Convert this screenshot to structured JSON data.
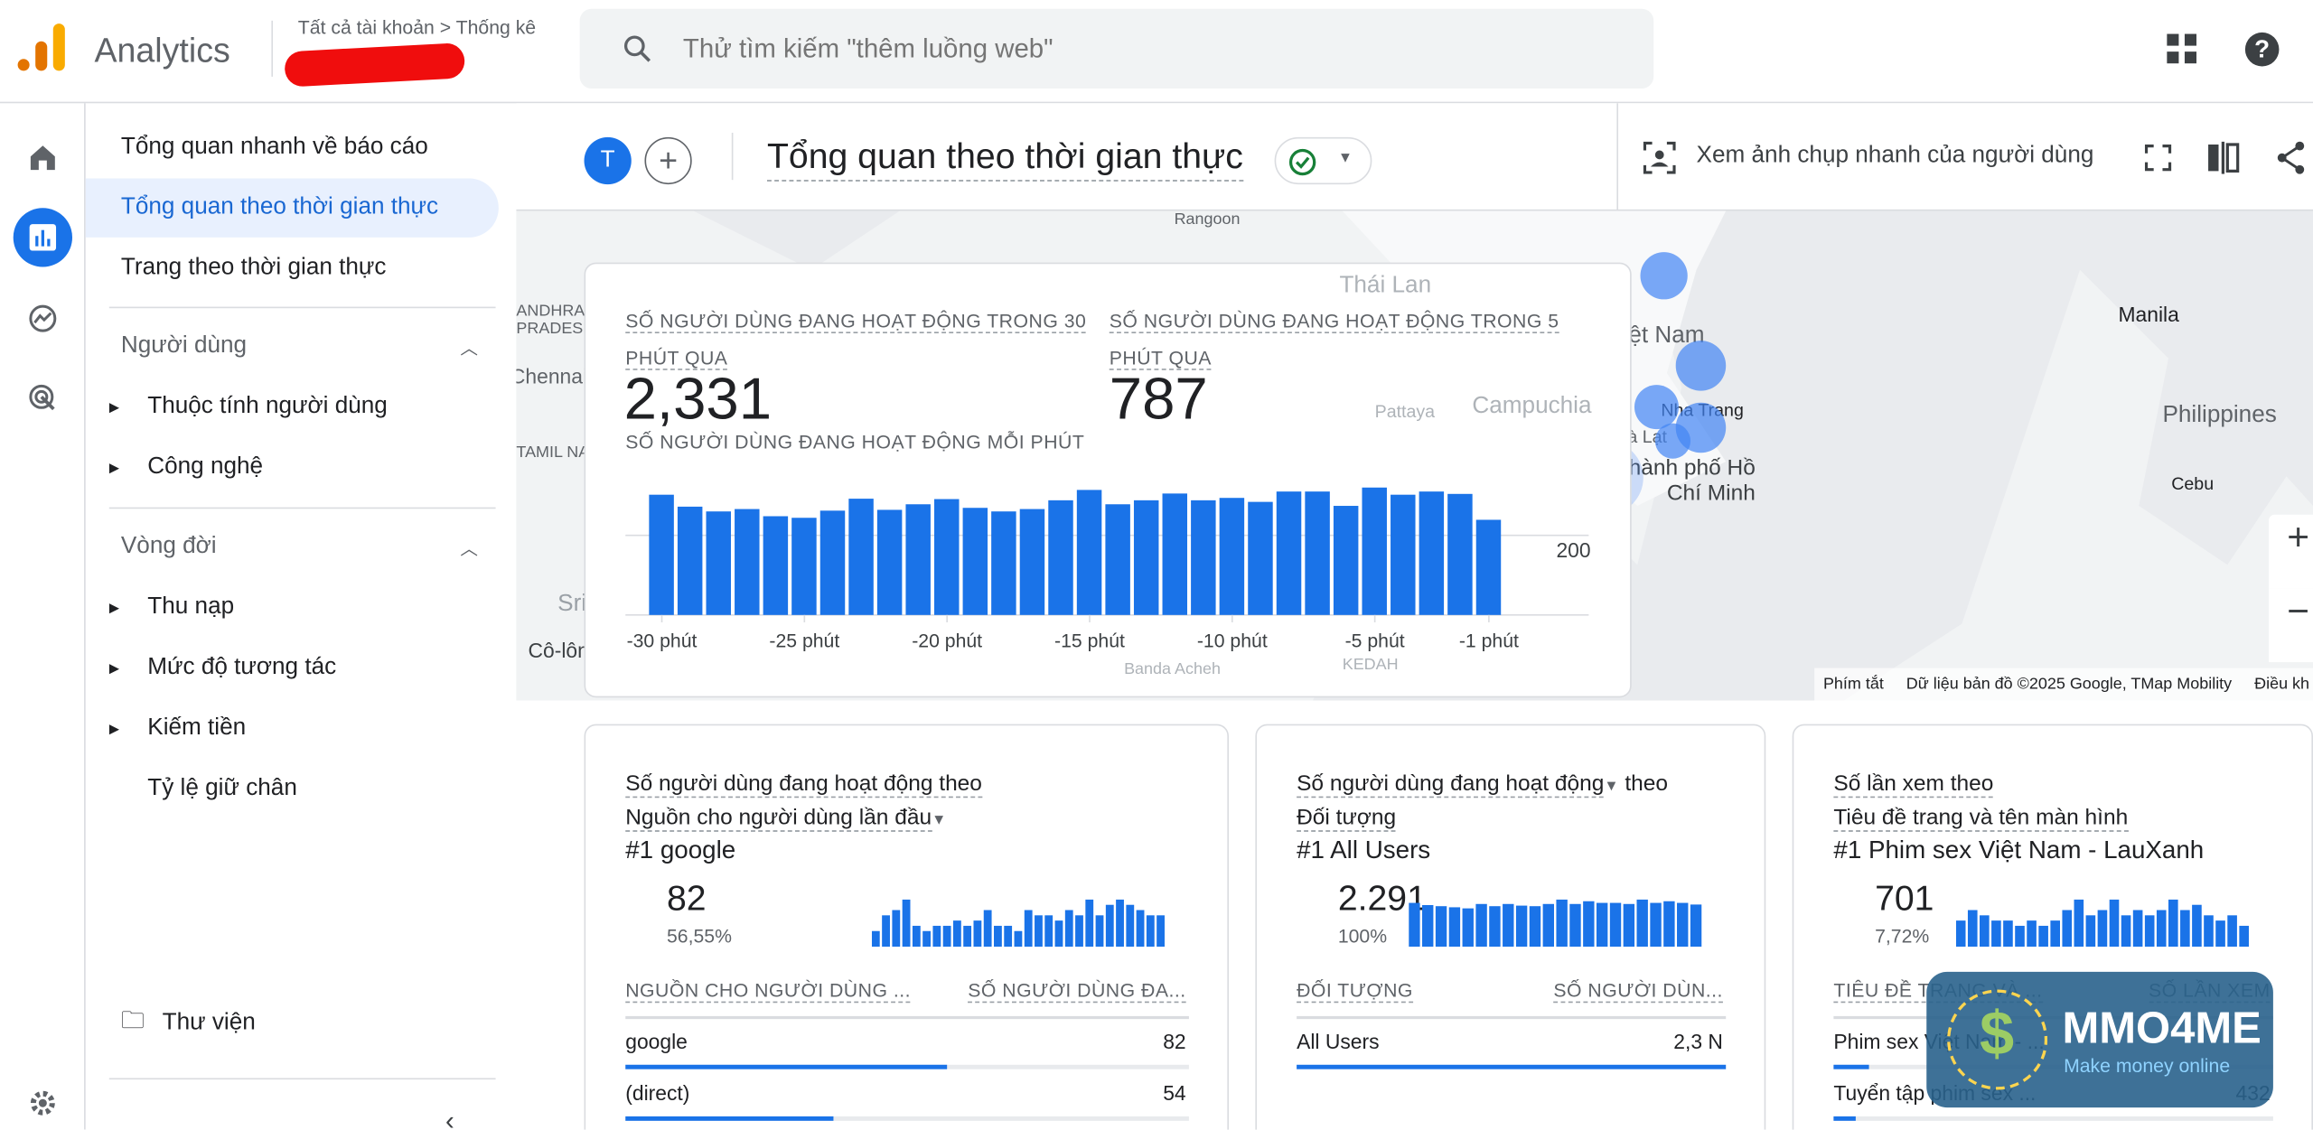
{
  "app": {
    "title": "Analytics",
    "breadcrumb": "Tất cả tài khoản > Thống kê"
  },
  "search": {
    "placeholder": "Thử tìm kiếm \"thêm luồng web\""
  },
  "icons": {
    "apps": "apps-grid-icon",
    "help": "help-icon",
    "home": "home-icon",
    "reports": "bar-chart-icon",
    "explore": "explore-icon",
    "advertising": "advertising-icon",
    "settings": "gear-icon"
  },
  "colors": {
    "accent": "#1a73e8",
    "active_bg": "#e8f0fe",
    "active_text": "#1967d2"
  },
  "sidebar": {
    "items": [
      {
        "label": "Tổng quan nhanh về báo cáo"
      },
      {
        "label": "Tổng quan theo thời gian thực",
        "active": true
      },
      {
        "label": "Trang theo thời gian thực"
      }
    ],
    "groups": [
      {
        "label": "Người dùng",
        "children": [
          "Thuộc tính người dùng",
          "Công nghệ"
        ]
      },
      {
        "label": "Vòng đời",
        "children": [
          "Thu nạp",
          "Mức độ tương tác",
          "Kiếm tiền",
          "Tỷ lệ giữ chân"
        ]
      }
    ],
    "library": "Thư viện"
  },
  "header": {
    "avatar": "T",
    "title": "Tổng quan theo thời gian thực",
    "snapshot": "Xem ảnh chụp nhanh của người dùng"
  },
  "map": {
    "labels": [
      "Thái Lan",
      "Việt Nam",
      "Campuchia",
      "Nha Trang",
      "Tp. Đà Lạt",
      "Thành phố Hồ Chí Minh",
      "Manila",
      "Philippines",
      "Cebu",
      "Pattaya",
      "Chennai",
      "Cô-lôm-bô",
      "Sri Lanka",
      "Banda Acheh",
      "KEDAH",
      "Rangoon",
      "ANDHRA PRADESH",
      "TAMIL NADU"
    ],
    "attribution": [
      "Phím tắt",
      "Dữ liệu bản đồ ©2025 Google, TMap Mobility",
      "Điều kh"
    ]
  },
  "realtime": {
    "kpi30_label": "SỐ NGƯỜI DÙNG ĐANG HOẠT ĐỘNG TRONG 30 PHÚT QUA",
    "kpi30_value": "2,331",
    "kpi5_label": "SỐ NGƯỜI DÙNG ĐANG HOẠT ĐỘNG TRONG 5 PHÚT QUA",
    "kpi5_value": "787",
    "chart_label": "SỐ NGƯỜI DÙNG ĐANG HOẠT ĐỘNG MỖI PHÚT"
  },
  "chart_data": {
    "type": "bar",
    "xticks": [
      "-30 phút",
      "-25 phút",
      "-20 phút",
      "-15 phút",
      "-10 phút",
      "-5 phút",
      "-1 phút"
    ],
    "yticks": [
      200
    ],
    "ylim": [
      0,
      400
    ],
    "values": [
      302,
      272,
      260,
      266,
      248,
      244,
      262,
      292,
      264,
      278,
      291,
      269,
      260,
      266,
      288,
      314,
      278,
      288,
      305,
      288,
      294,
      284,
      310,
      310,
      274,
      320,
      302,
      310,
      304,
      239
    ]
  },
  "cards": [
    {
      "title1": "Số người dùng đang hoạt động theo",
      "title2": "Nguồn cho người dùng lần đầu",
      "top": "#1  google",
      "value": "82",
      "pct": "56,55%",
      "col1": "NGUỒN CHO NGƯỜI DÙNG ...",
      "col2": "SỐ NGƯỜI DÙNG ĐA...",
      "rows": [
        {
          "name": "google",
          "value": "82",
          "share": 0.57
        },
        {
          "name": "(direct)",
          "value": "54",
          "share": 0.37
        }
      ],
      "spark": [
        3,
        6,
        7,
        9,
        4,
        3,
        4,
        4,
        5,
        4,
        5,
        7,
        4,
        4,
        3,
        7,
        6,
        6,
        5,
        7,
        6,
        9,
        6,
        8,
        9,
        8,
        7,
        6,
        6
      ]
    },
    {
      "title1": "Số người dùng đang hoạt động",
      "title2": "Đối tượng",
      "top": "#1  All Users",
      "value": "2.291",
      "pct": "100%",
      "col1": "ĐỐI TƯỢNG",
      "col2": "SỐ NGƯỜI DÙN...",
      "rows": [
        {
          "name": "All Users",
          "value": "2,3 N",
          "share": 1.0
        }
      ],
      "spark": [
        8,
        7.6,
        7.4,
        7.2,
        7,
        7.8,
        7.4,
        7.8,
        7.5,
        7.4,
        7.8,
        8.6,
        7.8,
        8.3,
        8,
        8,
        7.8,
        8.6,
        8,
        8.3,
        8,
        7.7
      ]
    },
    {
      "title1": "Số lần xem theo",
      "title2": "Tiêu đề trang và tên màn hình",
      "top": "#1  Phim sex Việt Nam - LauXanh",
      "value": "701",
      "pct": "7,72%",
      "col1": "TIÊU ĐỀ TRANG VÀ ...",
      "col2": "SỐ LẦN XEM",
      "rows": [
        {
          "name": "Phim sex Việt Nam - ...",
          "value": "",
          "share": 0.08
        },
        {
          "name": "Tuyển tập phim sex ...",
          "value": "432",
          "share": 0.05
        }
      ],
      "spark": [
        5,
        7,
        6,
        5,
        5,
        4,
        5,
        4,
        5,
        7,
        9,
        6,
        7,
        9,
        6,
        7,
        6,
        7,
        9,
        7,
        8,
        6,
        5,
        6,
        4
      ]
    }
  ],
  "watermark": {
    "name": "MMO4ME",
    "tagline": "Make money online"
  }
}
